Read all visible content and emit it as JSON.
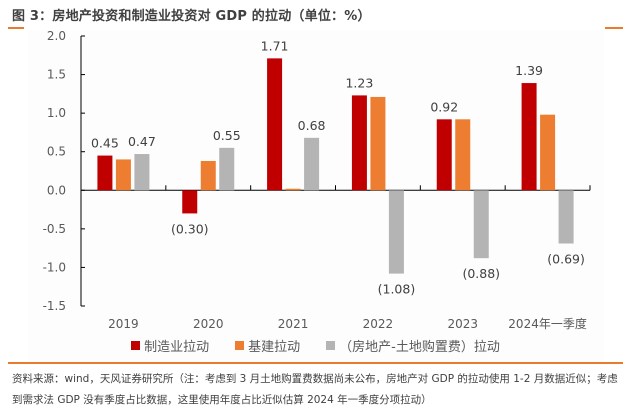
{
  "title": "图 3：房地产投资和制造业投资对 GDP 的拉动（单位：%）",
  "source_note": "资料来源：wind，天风证券研究所（注：考虑到 3 月土地购置费数据尚未公布，房地产对 GDP 的拉动使用 1-2 月数据近似；考虑到需求法 GDP 没有季度占比数据，这里使用年度占比近似估算 2024 年一季度分项拉动）",
  "chart_data": {
    "type": "bar",
    "title": "房地产投资和制造业投资对 GDP 的拉动（单位：%）",
    "xlabel": "",
    "ylabel": "",
    "ylim": [
      -1.5,
      2.0
    ],
    "yticks": [
      2.0,
      1.5,
      1.0,
      0.5,
      0.0,
      -0.5,
      -1.0,
      -1.5
    ],
    "ytick_labels": [
      "2.0",
      "1.5",
      "1.0",
      "0.5",
      "0.0",
      "-0.5",
      "-1.0",
      "-1.5"
    ],
    "grid": false,
    "legend_position": "bottom",
    "categories": [
      "2019",
      "2020",
      "2021",
      "2022",
      "2023",
      "2024年一季度"
    ],
    "series": [
      {
        "name": "制造业拉动",
        "color": "#c00000",
        "values": [
          0.45,
          -0.3,
          1.71,
          1.23,
          0.92,
          1.39
        ],
        "labels": [
          "0.45",
          "(0.30)",
          "1.71",
          "1.23",
          "0.92",
          "1.39"
        ]
      },
      {
        "name": "基建拉动",
        "color": "#ed7d31",
        "values": [
          0.4,
          0.38,
          0.02,
          1.21,
          0.92,
          0.98
        ],
        "labels": [
          "",
          "",
          "",
          "",
          "",
          ""
        ]
      },
      {
        "name": "（房地产-土地购置费）拉动",
        "color": "#b4b4b4",
        "values": [
          0.47,
          0.55,
          0.68,
          -1.08,
          -0.88,
          -0.69
        ],
        "labels": [
          "0.47",
          "0.55",
          "0.68",
          "(1.08)",
          "(0.88)",
          "(0.69)"
        ]
      }
    ]
  }
}
